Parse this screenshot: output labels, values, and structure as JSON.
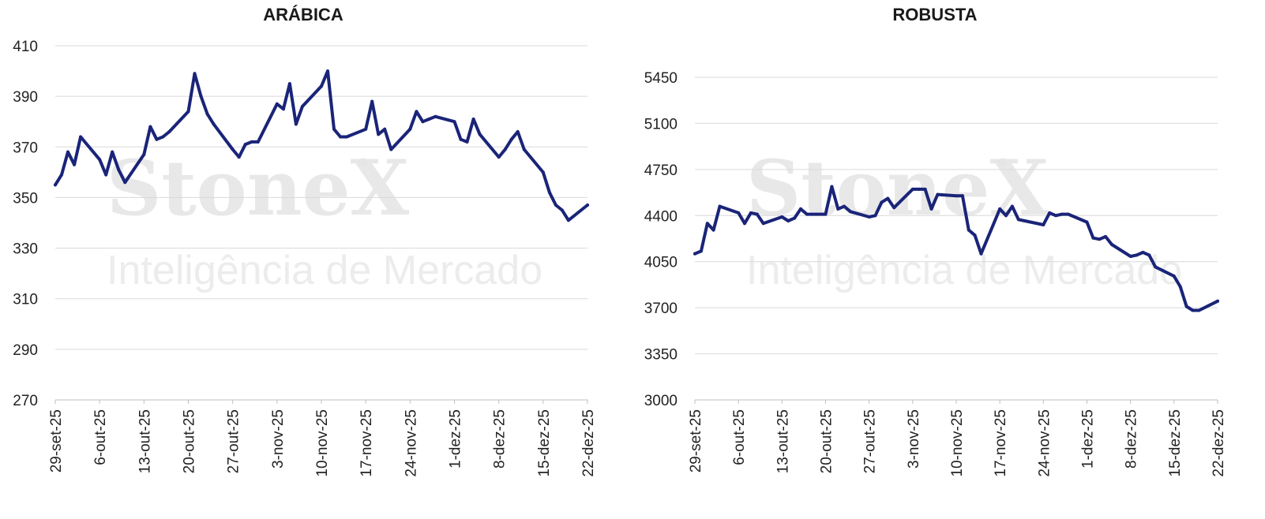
{
  "watermark": {
    "brand": "StoneX",
    "registered": "®",
    "tagline": "Inteligência de Mercado"
  },
  "colors": {
    "series": "#1a2478"
  },
  "chart_data": [
    {
      "type": "line",
      "title": "ARÁBICA",
      "ylim": [
        270,
        410
      ],
      "yticks": [
        270,
        290,
        310,
        330,
        350,
        370,
        390,
        410
      ],
      "xlim": [
        "29-set-25",
        "22-dez-25"
      ],
      "xtick_labels": [
        "29-set-25",
        "6-out-25",
        "13-out-25",
        "20-out-25",
        "27-out-25",
        "3-nov-25",
        "10-nov-25",
        "17-nov-25",
        "24-nov-25",
        "1-dez-25",
        "8-dez-25",
        "15-dez-25",
        "22-dez-25"
      ],
      "grid": true,
      "legend": "none",
      "series": [
        {
          "x": [
            "29-set-25",
            "30-set-25",
            "1-out-25",
            "2-out-25",
            "3-out-25",
            "6-out-25",
            "7-out-25",
            "8-out-25",
            "9-out-25",
            "10-out-25",
            "13-out-25",
            "14-out-25",
            "15-out-25",
            "16-out-25",
            "17-out-25",
            "20-out-25",
            "21-out-25",
            "22-out-25",
            "23-out-25",
            "24-out-25",
            "27-out-25",
            "28-out-25",
            "29-out-25",
            "30-out-25",
            "31-out-25",
            "3-nov-25",
            "4-nov-25",
            "5-nov-25",
            "6-nov-25",
            "7-nov-25",
            "10-nov-25",
            "11-nov-25",
            "12-nov-25",
            "13-nov-25",
            "14-nov-25",
            "17-nov-25",
            "18-nov-25",
            "19-nov-25",
            "20-nov-25",
            "21-nov-25",
            "24-nov-25",
            "25-nov-25",
            "26-nov-25",
            "27-nov-25",
            "28-nov-25",
            "1-dez-25",
            "2-dez-25",
            "3-dez-25",
            "4-dez-25",
            "5-dez-25",
            "8-dez-25",
            "9-dez-25",
            "10-dez-25",
            "11-dez-25",
            "12-dez-25",
            "15-dez-25",
            "16-dez-25",
            "17-dez-25",
            "18-dez-25",
            "19-dez-25",
            "22-dez-25"
          ],
          "values": [
            355,
            359,
            368,
            363,
            374,
            365,
            359,
            368,
            361,
            356,
            367,
            378,
            373,
            374,
            376,
            384,
            399,
            390,
            383,
            379,
            369,
            366,
            371,
            372,
            372,
            387,
            385,
            395,
            379,
            386,
            394,
            400,
            377,
            374,
            374,
            377,
            388,
            375,
            377,
            369,
            377,
            384,
            380,
            381,
            382,
            380,
            373,
            372,
            381,
            375,
            366,
            369,
            373,
            376,
            369,
            360,
            352,
            347,
            345,
            341,
            347
          ]
        }
      ]
    },
    {
      "type": "line",
      "title": "ROBUSTA",
      "ylim": [
        3000,
        5450
      ],
      "yticks": [
        3000,
        3350,
        3700,
        4050,
        4400,
        4750,
        5100,
        5450
      ],
      "xlim": [
        "29-set-25",
        "22-dez-25"
      ],
      "xtick_labels": [
        "29-set-25",
        "6-out-25",
        "13-out-25",
        "20-out-25",
        "27-out-25",
        "3-nov-25",
        "10-nov-25",
        "17-nov-25",
        "24-nov-25",
        "1-dez-25",
        "8-dez-25",
        "15-dez-25",
        "22-dez-25"
      ],
      "grid": true,
      "legend": "none",
      "series": [
        {
          "x": [
            "29-set-25",
            "30-set-25",
            "1-out-25",
            "2-out-25",
            "3-out-25",
            "6-out-25",
            "7-out-25",
            "8-out-25",
            "9-out-25",
            "10-out-25",
            "13-out-25",
            "14-out-25",
            "15-out-25",
            "16-out-25",
            "17-out-25",
            "20-out-25",
            "21-out-25",
            "22-out-25",
            "23-out-25",
            "24-out-25",
            "27-out-25",
            "28-out-25",
            "29-out-25",
            "30-out-25",
            "31-out-25",
            "3-nov-25",
            "4-nov-25",
            "5-nov-25",
            "6-nov-25",
            "7-nov-25",
            "10-nov-25",
            "11-nov-25",
            "12-nov-25",
            "13-nov-25",
            "14-nov-25",
            "17-nov-25",
            "18-nov-25",
            "19-nov-25",
            "20-nov-25",
            "21-nov-25",
            "24-nov-25",
            "25-nov-25",
            "26-nov-25",
            "27-nov-25",
            "28-nov-25",
            "1-dez-25",
            "2-dez-25",
            "3-dez-25",
            "4-dez-25",
            "5-dez-25",
            "8-dez-25",
            "9-dez-25",
            "10-dez-25",
            "11-dez-25",
            "12-dez-25",
            "15-dez-25",
            "16-dez-25",
            "17-dez-25",
            "18-dez-25",
            "19-dez-25",
            "22-dez-25"
          ],
          "values": [
            4110,
            4130,
            4340,
            4290,
            4470,
            4420,
            4340,
            4420,
            4410,
            4340,
            4390,
            4360,
            4380,
            4450,
            4410,
            4410,
            4620,
            4450,
            4470,
            4430,
            4390,
            4400,
            4500,
            4530,
            4460,
            4600,
            4600,
            4600,
            4450,
            4560,
            4550,
            4550,
            4290,
            4250,
            4110,
            4450,
            4400,
            4470,
            4370,
            4360,
            4330,
            4420,
            4400,
            4410,
            4410,
            4350,
            4230,
            4220,
            4240,
            4180,
            4090,
            4100,
            4120,
            4100,
            4010,
            3940,
            3860,
            3710,
            3680,
            3680,
            3750
          ]
        }
      ]
    }
  ]
}
